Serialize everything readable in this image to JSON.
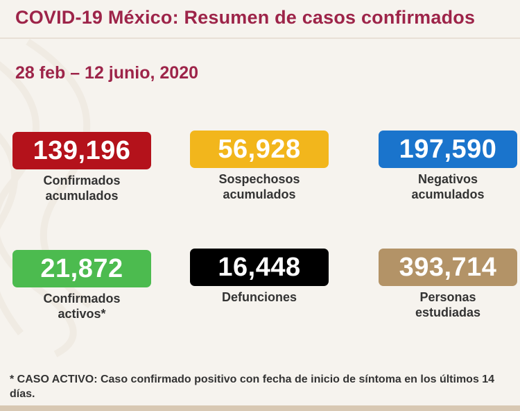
{
  "header": {
    "title": "COVID-19 México: Resumen de casos confirmados",
    "subtitle": "28 feb – 12 junio, 2020"
  },
  "stats": [
    {
      "value": "139,196",
      "line1": "Confirmados",
      "line2": "acumulados",
      "color": "#b4121b"
    },
    {
      "value": "56,928",
      "line1": "Sospechosos",
      "line2": "acumulados",
      "color": "#f2b61c"
    },
    {
      "value": "197,590",
      "line1": "Negativos",
      "line2": "acumulados",
      "color": "#1a74cc"
    },
    {
      "value": "21,872",
      "line1": "Confirmados",
      "line2": "activos*",
      "color": "#4cbb4f"
    },
    {
      "value": "16,448",
      "line1": "Defunciones",
      "line2": "",
      "color": "#000000"
    },
    {
      "value": "393,714",
      "line1": "Personas",
      "line2": "estudiadas",
      "color": "#b39367"
    }
  ],
  "footnote": "* CASO ACTIVO: Caso confirmado positivo con fecha de inicio de síntoma en los últimos 14 días."
}
